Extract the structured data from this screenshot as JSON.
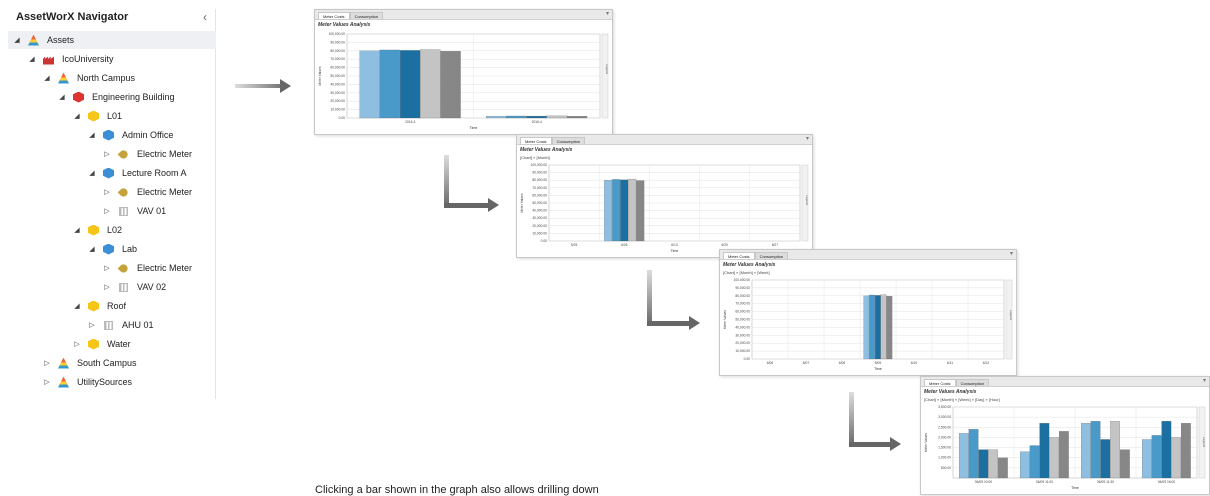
{
  "navigator": {
    "title": "AssetWorX Navigator",
    "collapse_icon": "chevron-left-icon",
    "nodes": [
      {
        "label": "Assets",
        "depth": 0,
        "icon": "assets-icon",
        "toggle": "expanded",
        "selected": true
      },
      {
        "label": "IcoUniversity",
        "depth": 1,
        "icon": "organization-icon",
        "toggle": "expanded"
      },
      {
        "label": "North Campus",
        "depth": 2,
        "icon": "campus-icon",
        "toggle": "expanded"
      },
      {
        "label": "Engineering Building",
        "depth": 3,
        "icon": "building-icon",
        "toggle": "expanded"
      },
      {
        "label": "L01",
        "depth": 4,
        "icon": "level-icon",
        "toggle": "expanded"
      },
      {
        "label": "Admin Office",
        "depth": 5,
        "icon": "room-icon",
        "toggle": "expanded"
      },
      {
        "label": "Electric Meter",
        "depth": 6,
        "icon": "meter-icon",
        "toggle": "collapsed"
      },
      {
        "label": "Lecture Room A",
        "depth": 5,
        "icon": "room-icon",
        "toggle": "expanded"
      },
      {
        "label": "Electric Meter",
        "depth": 6,
        "icon": "meter-icon",
        "toggle": "collapsed"
      },
      {
        "label": "VAV 01",
        "depth": 6,
        "icon": "vav-icon",
        "toggle": "collapsed"
      },
      {
        "label": "L02",
        "depth": 4,
        "icon": "level-icon",
        "toggle": "expanded"
      },
      {
        "label": "Lab",
        "depth": 5,
        "icon": "room-icon",
        "toggle": "expanded"
      },
      {
        "label": "Electric Meter",
        "depth": 6,
        "icon": "meter-icon",
        "toggle": "collapsed"
      },
      {
        "label": "VAV 02",
        "depth": 6,
        "icon": "vav-icon",
        "toggle": "collapsed"
      },
      {
        "label": "Roof",
        "depth": 4,
        "icon": "level-icon",
        "toggle": "expanded"
      },
      {
        "label": "AHU 01",
        "depth": 5,
        "icon": "vav-icon",
        "toggle": "collapsed"
      },
      {
        "label": "Water",
        "depth": 4,
        "icon": "level-icon",
        "toggle": "collapsed"
      },
      {
        "label": "South Campus",
        "depth": 2,
        "icon": "campus-icon",
        "toggle": "collapsed"
      },
      {
        "label": "UtilitySources",
        "depth": 2,
        "icon": "campus-icon",
        "toggle": "collapsed"
      }
    ]
  },
  "colors": {
    "series": [
      "#8fbfe0",
      "#4a9ac9",
      "#1c6fa1",
      "#c4c4c4",
      "#878787"
    ],
    "arrow": "#888888"
  },
  "caption": "Clicking a bar shown in the graph also allows drilling down",
  "panels_common": {
    "tabs": [
      "Meter Costs",
      "Consumption"
    ],
    "title": "Meter Values Analysis",
    "ylabel": "Meter Values",
    "xlabel": "Time",
    "legend_label": "Legend"
  },
  "chart_data": [
    {
      "type": "bar",
      "breadcrumb": "",
      "categories": [
        "2016-3",
        "2016-4"
      ],
      "y_ticks": [
        "100,000.00",
        "90,000.00",
        "80,000.00",
        "70,000.00",
        "60,000.00",
        "50,000.00",
        "40,000.00",
        "30,000.00",
        "20,000.00",
        "10,000.00",
        "0.00"
      ],
      "ylim": [
        0,
        100000
      ],
      "series": [
        {
          "values": [
            80000,
            2200
          ]
        },
        {
          "values": [
            81000,
            2400
          ]
        },
        {
          "values": [
            80500,
            2300
          ]
        },
        {
          "values": [
            81500,
            2600
          ]
        },
        {
          "values": [
            79500,
            2200
          ]
        }
      ]
    },
    {
      "type": "bar",
      "breadcrumb": "[Chart] » [Month]",
      "categories": [
        "5/25",
        "6/26",
        "6/13",
        "6/20",
        "6/27"
      ],
      "y_ticks": [
        "100,000.00",
        "90,000.00",
        "80,000.00",
        "70,000.00",
        "60,000.00",
        "50,000.00",
        "40,000.00",
        "30,000.00",
        "20,000.00",
        "10,000.00",
        "0.00"
      ],
      "ylim": [
        0,
        100000
      ],
      "series": [
        {
          "values": [
            0,
            80000,
            0,
            0,
            0
          ]
        },
        {
          "values": [
            0,
            81000,
            0,
            0,
            0
          ]
        },
        {
          "values": [
            0,
            80500,
            0,
            0,
            0
          ]
        },
        {
          "values": [
            0,
            81500,
            0,
            0,
            0
          ]
        },
        {
          "values": [
            0,
            79500,
            0,
            0,
            0
          ]
        }
      ]
    },
    {
      "type": "bar",
      "breadcrumb": "[Chart] » [Month] » [Week]",
      "categories": [
        "6/06",
        "6/07",
        "6/08",
        "6/09",
        "6/10",
        "6/11",
        "6/12"
      ],
      "y_ticks": [
        "100,000.00",
        "90,000.00",
        "80,000.00",
        "70,000.00",
        "60,000.00",
        "50,000.00",
        "40,000.00",
        "30,000.00",
        "20,000.00",
        "10,000.00",
        "0.00"
      ],
      "ylim": [
        0,
        100000
      ],
      "series": [
        {
          "values": [
            0,
            0,
            0,
            80000,
            0,
            0,
            0
          ]
        },
        {
          "values": [
            0,
            0,
            0,
            81000,
            0,
            0,
            0
          ]
        },
        {
          "values": [
            0,
            0,
            0,
            80500,
            0,
            0,
            0
          ]
        },
        {
          "values": [
            0,
            0,
            0,
            81500,
            0,
            0,
            0
          ]
        },
        {
          "values": [
            0,
            0,
            0,
            79500,
            0,
            0,
            0
          ]
        }
      ]
    },
    {
      "type": "bar",
      "breadcrumb": "[Chart] » [Month] » [Week] » [Day] » [Hour]",
      "categories": [
        "06/09 10:00",
        "06/09 11:00",
        "06/09 11:30",
        "06/09 16:00"
      ],
      "y_ticks": [
        "3,500.00",
        "3,000.00",
        "2,500.00",
        "2,000.00",
        "1,500.00",
        "1,000.00",
        "500.00"
      ],
      "ylim": [
        0,
        3500
      ],
      "series": [
        {
          "values": [
            2200,
            1300,
            2700,
            1900
          ]
        },
        {
          "values": [
            2400,
            1600,
            2800,
            2100
          ]
        },
        {
          "values": [
            1400,
            2700,
            1900,
            2800
          ]
        },
        {
          "values": [
            1400,
            2000,
            2800,
            2000
          ]
        },
        {
          "values": [
            1000,
            2300,
            1400,
            2700
          ]
        }
      ]
    }
  ]
}
